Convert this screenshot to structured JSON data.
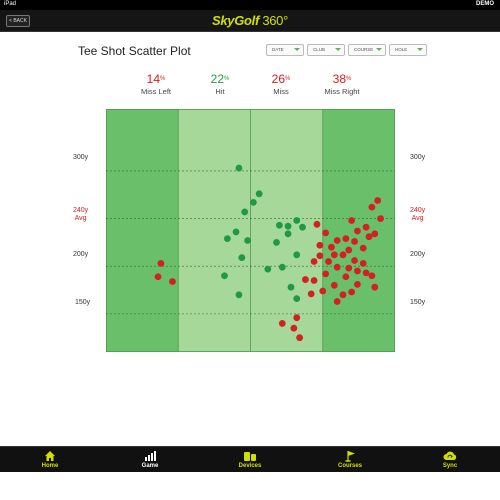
{
  "status": {
    "carrier": "iPad",
    "clock": "",
    "demo": "DEMO"
  },
  "app": {
    "back_label": "< BACK",
    "logo_text": "SkyGolf",
    "logo_num": "360°"
  },
  "page": {
    "title": "Tee Shot Scatter Plot"
  },
  "filters": [
    {
      "label": "DATE"
    },
    {
      "label": "CLUB"
    },
    {
      "label": "COURSE"
    },
    {
      "label": "HOLE"
    }
  ],
  "stats": [
    {
      "pct": "14",
      "unit": "%",
      "label": "Miss Left",
      "color": "#d41b1b"
    },
    {
      "pct": "22",
      "unit": "%",
      "label": "Hit",
      "color": "#20a040"
    },
    {
      "pct": "26",
      "unit": "%",
      "label": "Miss",
      "color": "#d41b1b"
    },
    {
      "pct": "38",
      "unit": "%",
      "label": "Miss Right",
      "color": "#d41b1b"
    }
  ],
  "chart_data": {
    "type": "scatter",
    "y_tick_labels": [
      "300y",
      "200y",
      "150y"
    ],
    "avg_label_line1": "240y",
    "avg_label_line2": "Avg",
    "ylim": [
      110,
      365
    ],
    "xlim": [
      0,
      100
    ],
    "zone_bounds": [
      0,
      25,
      50,
      75,
      100
    ],
    "zone_colors": [
      "#6ac06a",
      "#a6d89a",
      "#a6d89a",
      "#6ac06a"
    ],
    "grid_lines_y": [
      300,
      250,
      200,
      150
    ],
    "grid": true,
    "series": [
      {
        "color": "#1e9a46",
        "points": [
          [
            46,
            303
          ],
          [
            53,
            276
          ],
          [
            51,
            267
          ],
          [
            48,
            257
          ],
          [
            60,
            243
          ],
          [
            63,
            242
          ],
          [
            45,
            236
          ],
          [
            42,
            229
          ],
          [
            59,
            225
          ],
          [
            49,
            227
          ],
          [
            63,
            234
          ],
          [
            66,
            248
          ],
          [
            68,
            241
          ],
          [
            41,
            190
          ],
          [
            47,
            209
          ],
          [
            66,
            212
          ],
          [
            61,
            199
          ],
          [
            46,
            170
          ],
          [
            64,
            178
          ],
          [
            66,
            166
          ],
          [
            56,
            197
          ]
        ]
      },
      {
        "color": "#d42020",
        "points": [
          [
            19,
            203
          ],
          [
            18,
            189
          ],
          [
            23,
            184
          ],
          [
            94,
            269
          ],
          [
            92,
            262
          ],
          [
            95,
            250
          ],
          [
            85,
            248
          ],
          [
            90,
            241
          ],
          [
            73,
            244
          ],
          [
            76,
            235
          ],
          [
            80,
            227
          ],
          [
            74,
            222
          ],
          [
            87,
            237
          ],
          [
            91,
            231
          ],
          [
            93,
            234
          ],
          [
            86,
            226
          ],
          [
            83,
            229
          ],
          [
            78,
            220
          ],
          [
            89,
            219
          ],
          [
            84,
            217
          ],
          [
            79,
            212
          ],
          [
            82,
            212
          ],
          [
            86,
            206
          ],
          [
            89,
            203
          ],
          [
            74,
            211
          ],
          [
            72,
            205
          ],
          [
            77,
            205
          ],
          [
            84,
            198
          ],
          [
            80,
            199
          ],
          [
            87,
            195
          ],
          [
            90,
            193
          ],
          [
            76,
            192
          ],
          [
            83,
            189
          ],
          [
            69,
            186
          ],
          [
            72,
            185
          ],
          [
            79,
            180
          ],
          [
            87,
            181
          ],
          [
            75,
            174
          ],
          [
            82,
            170
          ],
          [
            71,
            171
          ],
          [
            80,
            163
          ],
          [
            85,
            173
          ],
          [
            92,
            190
          ],
          [
            93,
            178
          ],
          [
            66,
            146
          ],
          [
            65,
            135
          ],
          [
            61,
            140
          ],
          [
            67,
            125
          ]
        ]
      }
    ]
  },
  "tabs": [
    {
      "label": "Home",
      "icon": "home-icon"
    },
    {
      "label": "Game",
      "icon": "bar-chart-icon"
    },
    {
      "label": "Devices",
      "icon": "devices-icon"
    },
    {
      "label": "Courses",
      "icon": "flag-icon"
    },
    {
      "label": "Sync",
      "icon": "sync-icon"
    }
  ]
}
